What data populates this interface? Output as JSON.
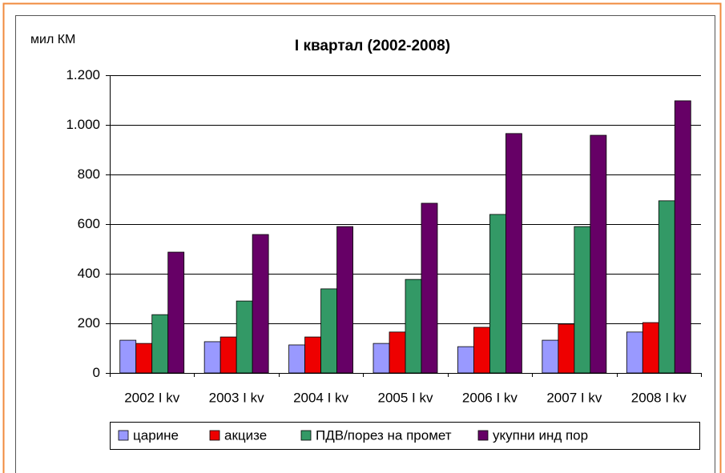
{
  "chart_data": {
    "type": "bar",
    "title": "I квартал (2002-2008)",
    "y_label": "мил КМ",
    "categories": [
      "2002 I kv",
      "2003 I kv",
      "2004 I kv",
      "2005 I kv",
      "2006 I kv",
      "2007 I kv",
      "2008 I kv"
    ],
    "series": [
      {
        "name": "царине",
        "color": "#9999ff",
        "values": [
          132,
          126,
          113,
          119,
          106,
          132,
          165
        ]
      },
      {
        "name": "акцизе",
        "color": "#ee0000",
        "values": [
          119,
          145,
          145,
          165,
          184,
          197,
          203
        ]
      },
      {
        "name": "ПДВ/порез на промет",
        "color": "#339966",
        "values": [
          235,
          290,
          339,
          377,
          639,
          590,
          694
        ]
      },
      {
        "name": "укупни инд пор",
        "color": "#660066",
        "values": [
          487,
          558,
          590,
          684,
          965,
          958,
          1097
        ]
      }
    ],
    "ylim": [
      0,
      1200
    ],
    "yticks": [
      0,
      200,
      400,
      600,
      800,
      {
        "value": 1000,
        "label": "1.000"
      },
      {
        "value": 1200,
        "label": "1.200"
      }
    ],
    "grid": true,
    "legend": "bottom"
  }
}
